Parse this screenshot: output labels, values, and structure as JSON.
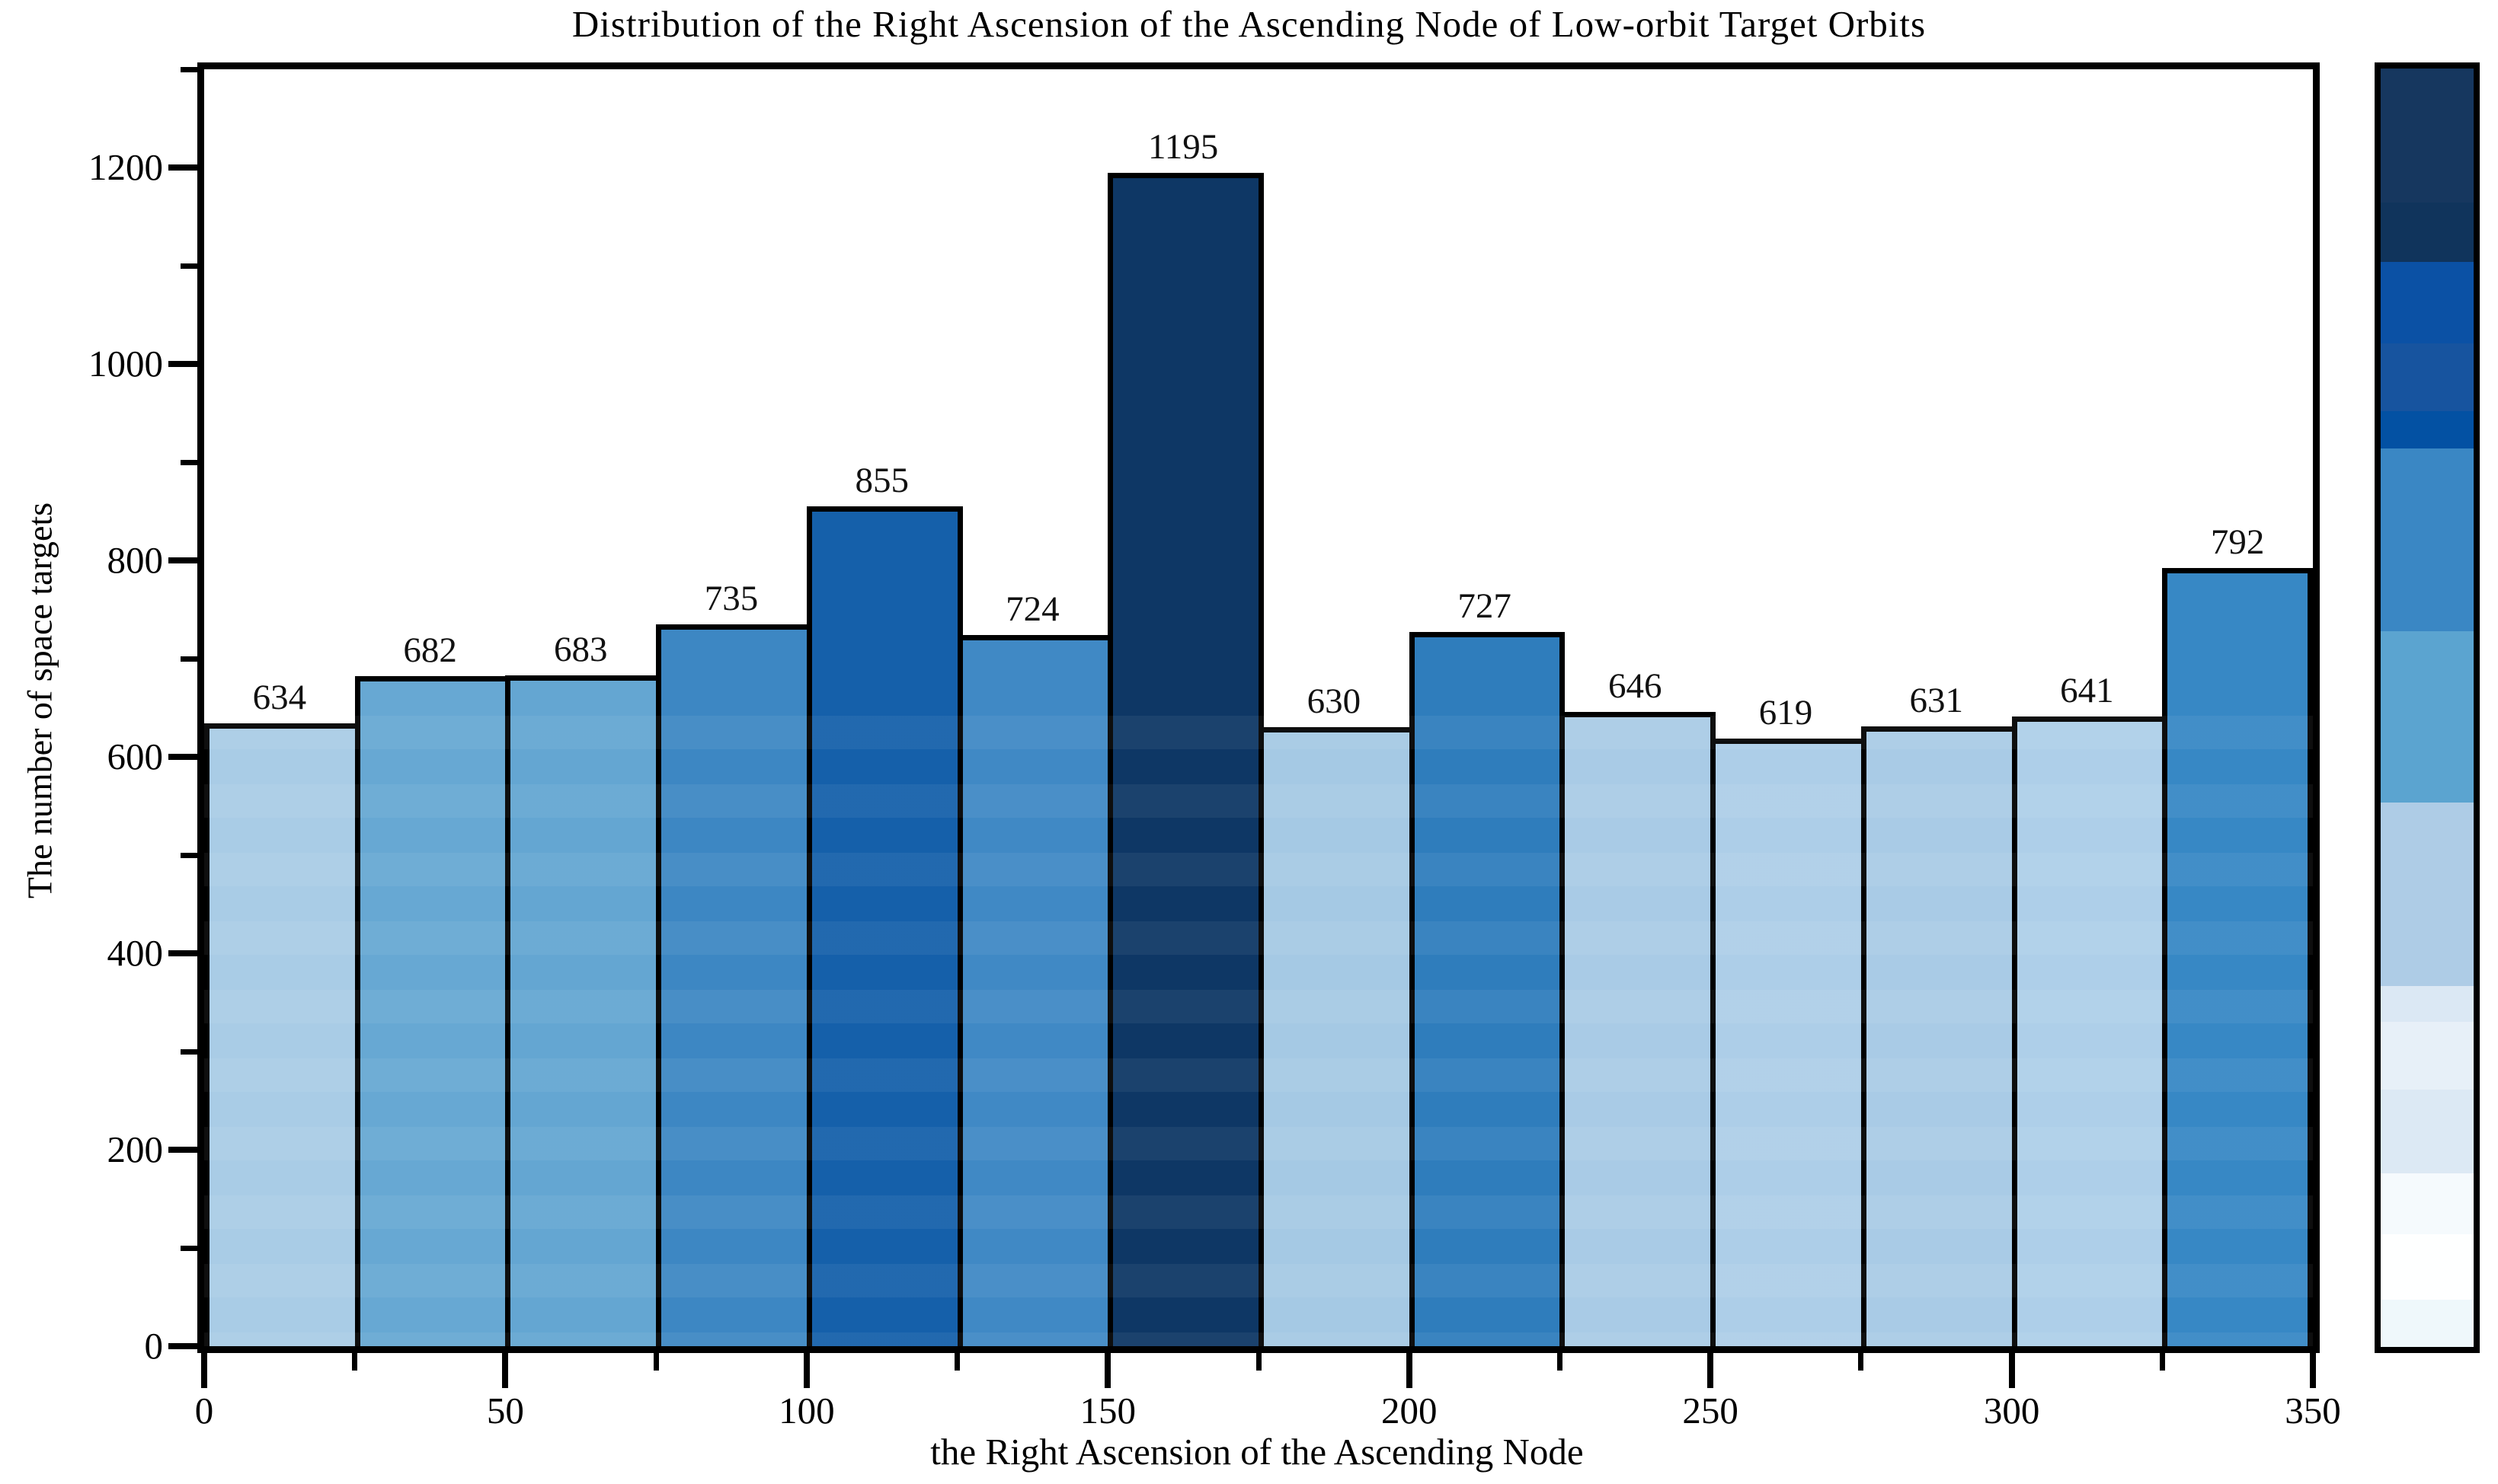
{
  "chart_data": {
    "type": "bar",
    "title": "Distribution of the Right Ascension of the Ascending Node of Low-orbit Target Orbits",
    "xlabel": "the Right Ascension of the Ascending Node",
    "ylabel": "The number of space targets",
    "bin_width": 25,
    "bin_starts": [
      0,
      25,
      50,
      75,
      100,
      125,
      150,
      175,
      200,
      225,
      250,
      275,
      300,
      325
    ],
    "values": [
      634,
      682,
      683,
      735,
      855,
      724,
      1195,
      630,
      727,
      646,
      619,
      631,
      641,
      792
    ],
    "bar_colors": [
      "#a9cce6",
      "#67a8d3",
      "#64a6d2",
      "#3d87c3",
      "#1560aa",
      "#4089c5",
      "#0e3765",
      "#a5c9e4",
      "#2f7dbc",
      "#a9cbe6",
      "#adcee8",
      "#a9cbe6",
      "#aecfe9",
      "#3788c5"
    ],
    "bar_edge_color": "#000000",
    "value_label_color": "#111111",
    "x_ticks_major": [
      0,
      50,
      100,
      150,
      200,
      250,
      300,
      350
    ],
    "x_ticks_minor": [
      25,
      75,
      125,
      175,
      225,
      275,
      325
    ],
    "y_ticks_major": [
      0,
      200,
      400,
      600,
      800,
      1000,
      1200
    ],
    "y_ticks_minor": [
      100,
      300,
      500,
      700,
      900,
      1100,
      1300
    ],
    "xlim": [
      0,
      350
    ],
    "ylim": [
      0,
      1304
    ],
    "grid": false,
    "legend": null,
    "background_color": "#ffffff",
    "axis_color": "#000000",
    "colorbar": {
      "position": "right",
      "bands_top_to_bottom": [
        {
          "color": "#16375f",
          "frac": 0.105
        },
        {
          "color": "#10345c",
          "frac": 0.046
        },
        {
          "color": "#0b51a5",
          "frac": 0.064
        },
        {
          "color": "#17549f",
          "frac": 0.053
        },
        {
          "color": "#0351a3",
          "frac": 0.029
        },
        {
          "color": "#3a87c4",
          "frac": 0.143
        },
        {
          "color": "#5ba4d0",
          "frac": 0.134
        },
        {
          "color": "#aecce6",
          "frac": 0.144
        },
        {
          "color": "#dbe8f4",
          "frac": 0.028
        },
        {
          "color": "#e7f0f8",
          "frac": 0.053
        },
        {
          "color": "#dce9f4",
          "frac": 0.065
        },
        {
          "color": "#f5fafd",
          "frac": 0.048
        },
        {
          "color": "#feffff",
          "frac": 0.051
        },
        {
          "color": "#eff8fb",
          "frac": 0.037
        }
      ]
    }
  }
}
